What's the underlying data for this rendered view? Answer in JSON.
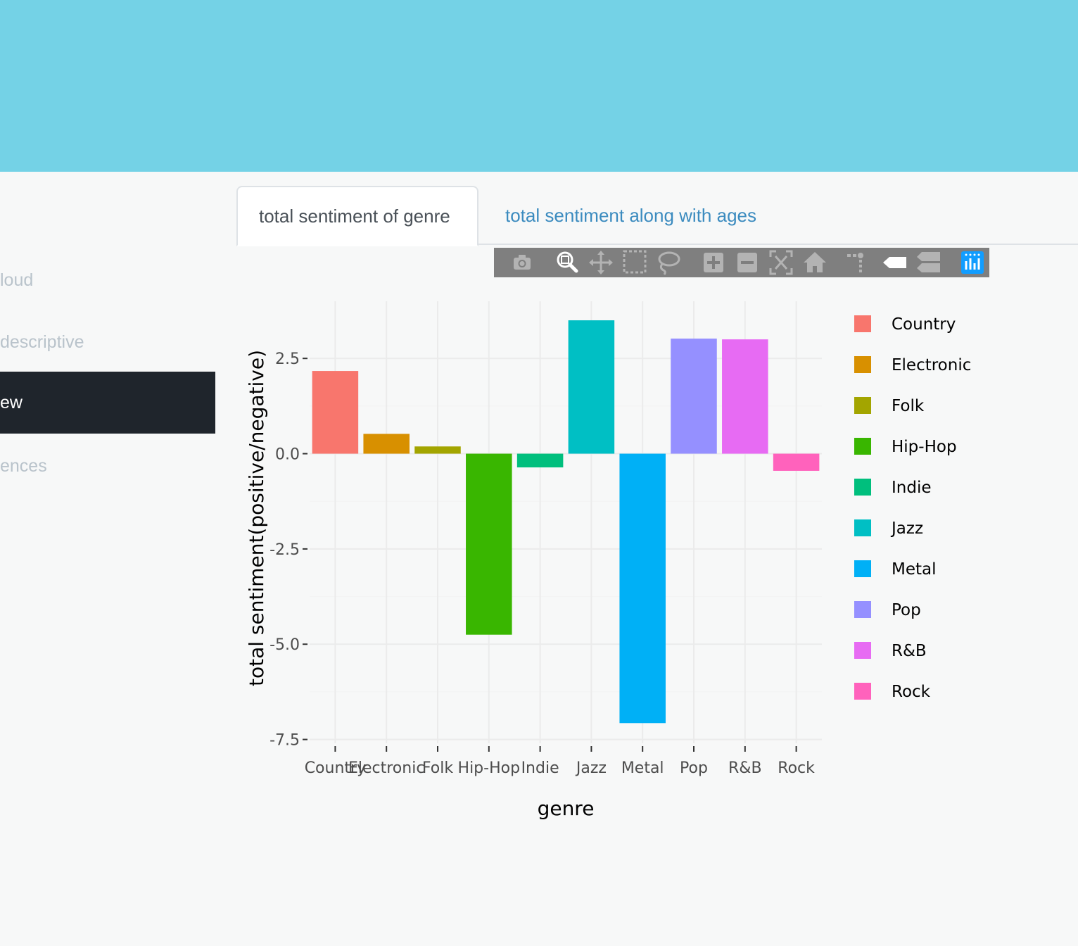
{
  "sidebar": {
    "items": [
      {
        "label": "loud"
      },
      {
        "label": "descriptive"
      },
      {
        "label": "ew"
      },
      {
        "label": "ences"
      }
    ]
  },
  "tabs": [
    {
      "label": "total sentiment of genre",
      "active": true
    },
    {
      "label": "total sentiment along with ages",
      "active": false
    }
  ],
  "modebar": {
    "buttons": [
      "camera-icon",
      "zoom-icon",
      "pan-icon",
      "box-select-icon",
      "lasso-select-icon",
      "zoom-in-icon",
      "zoom-out-icon",
      "autoscale-icon",
      "reset-axes-icon",
      "spike-lines-icon",
      "hover-closest-icon",
      "hover-compare-icon",
      "plotly-logo-icon"
    ]
  },
  "chart_data": {
    "type": "bar",
    "categories": [
      "Country",
      "Electronic",
      "Folk",
      "Hip-Hop",
      "Indie",
      "Jazz",
      "Metal",
      "Pop",
      "R&B",
      "Rock"
    ],
    "values": [
      2.17,
      0.52,
      0.19,
      -4.75,
      -0.36,
      3.5,
      -7.07,
      3.02,
      3.0,
      -0.45
    ],
    "colors": [
      "#F8766D",
      "#D89000",
      "#A3A500",
      "#39B600",
      "#00BF7D",
      "#00BFC4",
      "#00B0F6",
      "#9590FF",
      "#E76BF3",
      "#FF62BC"
    ],
    "xlabel": "genre",
    "ylabel": "total sentiment(positive/negative)",
    "ylim": [
      -7.6,
      4.0
    ],
    "yticks": [
      2.5,
      0.0,
      -2.5,
      -5.0,
      -7.5
    ],
    "ytick_labels": [
      "2.5",
      "0.0",
      "-2.5",
      "-5.0",
      "-7.5"
    ],
    "grid": true,
    "legend_placement": "right"
  }
}
